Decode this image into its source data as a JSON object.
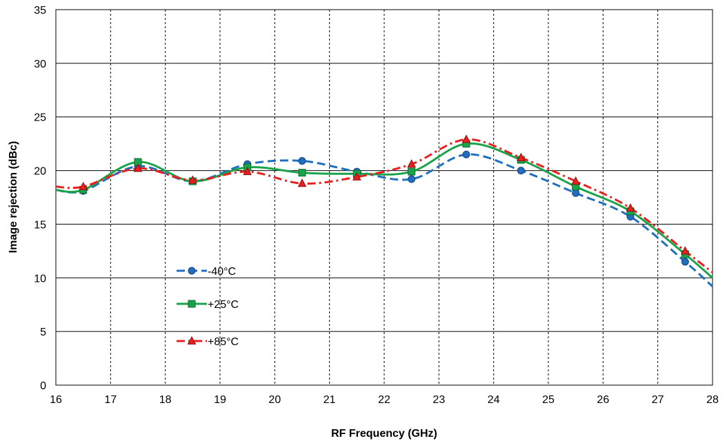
{
  "chart_data": {
    "type": "line",
    "title": "",
    "xlabel": "RF Frequency (GHz)",
    "ylabel": "Image rejection (dBc)",
    "xlim": [
      16,
      28
    ],
    "ylim": [
      0,
      35
    ],
    "x_ticks": [
      "16",
      "17",
      "18",
      "19",
      "20",
      "21",
      "22",
      "23",
      "24",
      "25",
      "26",
      "27",
      "28"
    ],
    "y_ticks": [
      "0",
      "5",
      "10",
      "15",
      "20",
      "25",
      "30",
      "35"
    ],
    "grid": {
      "x": "dashed",
      "y": "solid"
    },
    "legend_position": "inside-lower-left",
    "series": [
      {
        "name": "-40°C",
        "color": "#1f6fbf",
        "line_style": "dashed",
        "marker": "circle",
        "points": [
          [
            16,
            18.2
          ],
          [
            16.5,
            18.1
          ],
          [
            17.5,
            20.4
          ],
          [
            18.5,
            19.0
          ],
          [
            19.5,
            20.6
          ],
          [
            20.5,
            20.9
          ],
          [
            21.5,
            19.9
          ],
          [
            22.5,
            19.2
          ],
          [
            23.5,
            21.5
          ],
          [
            24.5,
            20.0
          ],
          [
            25.5,
            17.9
          ],
          [
            26.5,
            15.7
          ],
          [
            27.5,
            11.5
          ],
          [
            28,
            9.2
          ]
        ],
        "marker_x": [
          16.5,
          17.5,
          18.5,
          19.5,
          20.5,
          21.5,
          22.5,
          23.5,
          24.5,
          25.5,
          26.5,
          27.5
        ]
      },
      {
        "name": "+25°C",
        "color": "#1aa34a",
        "line_style": "solid",
        "marker": "square",
        "points": [
          [
            16,
            18.2
          ],
          [
            16.5,
            18.2
          ],
          [
            17.5,
            20.8
          ],
          [
            18.5,
            19.0
          ],
          [
            19.5,
            20.3
          ],
          [
            20.5,
            19.8
          ],
          [
            21.5,
            19.7
          ],
          [
            22.5,
            19.9
          ],
          [
            23.5,
            22.5
          ],
          [
            24.5,
            21.0
          ],
          [
            25.5,
            18.5
          ],
          [
            26.5,
            16.2
          ],
          [
            27.5,
            12.2
          ],
          [
            28,
            10.0
          ]
        ],
        "marker_x": [
          16.5,
          17.5,
          18.5,
          19.5,
          20.5,
          21.5,
          22.5,
          23.5,
          24.5,
          25.5,
          26.5,
          27.5
        ]
      },
      {
        "name": "+85°C",
        "color": "#e8201e",
        "line_style": "dash-dot",
        "marker": "triangle",
        "points": [
          [
            16,
            18.5
          ],
          [
            16.5,
            18.5
          ],
          [
            17.5,
            20.2
          ],
          [
            18.5,
            19.1
          ],
          [
            19.5,
            19.9
          ],
          [
            20.5,
            18.8
          ],
          [
            21.5,
            19.4
          ],
          [
            22.5,
            20.6
          ],
          [
            23.5,
            22.9
          ],
          [
            24.5,
            21.2
          ],
          [
            25.5,
            19.0
          ],
          [
            26.5,
            16.5
          ],
          [
            27.5,
            12.5
          ],
          [
            28,
            10.5
          ]
        ],
        "marker_x": [
          16.5,
          17.5,
          18.5,
          19.5,
          20.5,
          21.5,
          22.5,
          23.5,
          24.5,
          25.5,
          26.5,
          27.5
        ]
      }
    ]
  }
}
